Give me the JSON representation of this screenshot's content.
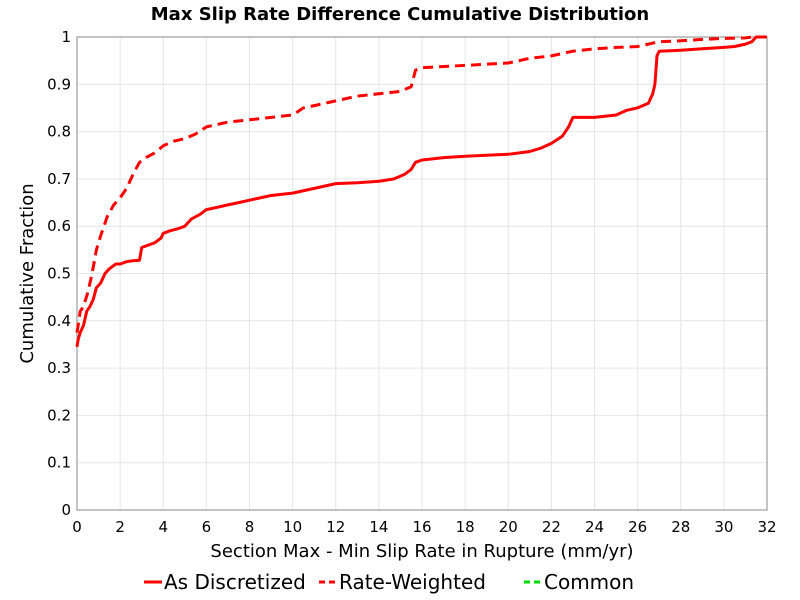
{
  "chart_data": {
    "type": "line",
    "title": "Max Slip Rate Difference Cumulative Distribution",
    "xlabel": "Section Max - Min Slip Rate in Rupture (mm/yr)",
    "ylabel": "Cumulative Fraction",
    "xlim": [
      0,
      32
    ],
    "ylim": [
      0,
      1
    ],
    "grid": true,
    "legend_position": "bottom",
    "x_ticks": [
      0,
      2,
      4,
      6,
      8,
      10,
      12,
      14,
      16,
      18,
      20,
      22,
      24,
      26,
      28,
      30,
      32
    ],
    "y_ticks": [
      0,
      0.1,
      0.2,
      0.3,
      0.4,
      0.5,
      0.6,
      0.7,
      0.8,
      0.9,
      1
    ],
    "series": [
      {
        "name": "As Discretized",
        "color": "#ff0000",
        "dash": "solid",
        "x": [
          0,
          0.05,
          0.15,
          0.3,
          0.45,
          0.6,
          0.75,
          0.9,
          1.1,
          1.3,
          1.5,
          1.8,
          2.0,
          2.3,
          2.6,
          2.9,
          3.0,
          3.3,
          3.6,
          3.9,
          4.0,
          4.3,
          4.7,
          5.0,
          5.3,
          5.7,
          6.0,
          6.5,
          7.0,
          7.5,
          8.0,
          9.0,
          10.0,
          11.0,
          12.0,
          13.0,
          14.0,
          14.7,
          15.2,
          15.5,
          15.7,
          16.0,
          17.0,
          18.0,
          19.0,
          20.0,
          21.0,
          21.5,
          22.0,
          22.5,
          22.8,
          23.0,
          24.0,
          25.0,
          25.5,
          26.0,
          26.5,
          26.7,
          26.8,
          26.9,
          27.0,
          28.0,
          29.0,
          30.0,
          30.5,
          31.0,
          31.3,
          31.5,
          32.0
        ],
        "y": [
          0.345,
          0.36,
          0.375,
          0.39,
          0.42,
          0.43,
          0.445,
          0.47,
          0.48,
          0.5,
          0.51,
          0.52,
          0.52,
          0.525,
          0.527,
          0.528,
          0.555,
          0.56,
          0.565,
          0.575,
          0.585,
          0.59,
          0.595,
          0.6,
          0.615,
          0.625,
          0.635,
          0.64,
          0.645,
          0.65,
          0.655,
          0.665,
          0.67,
          0.68,
          0.69,
          0.692,
          0.695,
          0.7,
          0.71,
          0.72,
          0.735,
          0.74,
          0.745,
          0.748,
          0.75,
          0.752,
          0.758,
          0.765,
          0.775,
          0.79,
          0.81,
          0.83,
          0.83,
          0.835,
          0.845,
          0.85,
          0.86,
          0.88,
          0.9,
          0.96,
          0.97,
          0.972,
          0.975,
          0.978,
          0.98,
          0.985,
          0.99,
          1.0,
          1.0
        ]
      },
      {
        "name": "Rate-Weighted",
        "color": "#ff0000",
        "dash": "dashed",
        "x": [
          0,
          0.05,
          0.15,
          0.3,
          0.5,
          0.7,
          0.9,
          1.1,
          1.4,
          1.7,
          2.0,
          2.3,
          2.6,
          2.9,
          3.2,
          3.6,
          4.0,
          4.5,
          5.0,
          5.5,
          6.0,
          7.0,
          8.0,
          9.0,
          10.0,
          10.5,
          11.0,
          12.0,
          13.0,
          14.0,
          15.0,
          15.5,
          15.7,
          16.0,
          18.0,
          20.0,
          21.0,
          22.0,
          23.0,
          24.0,
          25.0,
          26.0,
          26.5,
          27.0,
          28.0,
          29.0,
          30.0,
          31.0,
          31.3,
          32.0
        ],
        "y": [
          0.375,
          0.39,
          0.42,
          0.43,
          0.46,
          0.5,
          0.55,
          0.58,
          0.62,
          0.645,
          0.66,
          0.68,
          0.71,
          0.735,
          0.745,
          0.755,
          0.77,
          0.78,
          0.785,
          0.795,
          0.81,
          0.82,
          0.825,
          0.83,
          0.835,
          0.85,
          0.855,
          0.865,
          0.875,
          0.88,
          0.885,
          0.895,
          0.93,
          0.935,
          0.94,
          0.945,
          0.955,
          0.96,
          0.97,
          0.975,
          0.978,
          0.98,
          0.985,
          0.99,
          0.992,
          0.995,
          0.997,
          0.998,
          1.0,
          1.0
        ]
      },
      {
        "name": "Common",
        "color": "#00dd00",
        "dash": "dashed",
        "x": [],
        "y": []
      }
    ]
  }
}
